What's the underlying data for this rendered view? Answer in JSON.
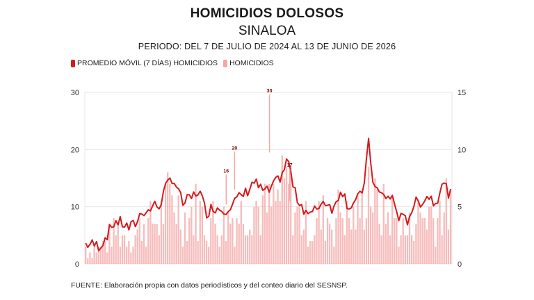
{
  "header": {
    "title": "HOMICIDIOS DOLOSOS",
    "subtitle": "SINALOA",
    "period": "PERIODO: DEL 7 DE JULIO DE 2024 AL 13 DE JUNIO DE 2026"
  },
  "legend": {
    "moving_average": "PROMEDIO MÓVIL (7 DÍAS) HOMICIDIOS",
    "daily": "HOMICIDIOS"
  },
  "source": "FUENTE: Elaboración propia con datos periodísticos y del conteo diario del SESNSP.",
  "colors": {
    "moving_average": "#d7191c",
    "daily": "#f4a6a6",
    "grid": "#e6e6e6"
  },
  "chart_data": {
    "type": "bar",
    "title": "HOMICIDIOS DOLOSOS",
    "subtitle": "SINALOA",
    "x_start": "2024-07-07",
    "x_end": "2026-06-13",
    "grid": true,
    "legend_position": "top-left",
    "y_left": {
      "ticks": [
        0,
        10,
        20,
        30
      ],
      "range": [
        0,
        30
      ]
    },
    "y_right": {
      "ticks": [
        0,
        5,
        10,
        15
      ],
      "range": [
        0,
        15
      ]
    },
    "annotated_peaks": [
      {
        "label": "30",
        "value": 30
      },
      {
        "label": "20",
        "value": 20
      },
      {
        "label": "17",
        "value": 17
      },
      {
        "label": "16",
        "value": 16
      }
    ],
    "moving_average_knots": [
      [
        0,
        3.5
      ],
      [
        0.04,
        3.2
      ],
      [
        0.06,
        5.3
      ],
      [
        0.08,
        7.5
      ],
      [
        0.1,
        7.1
      ],
      [
        0.12,
        6.2
      ],
      [
        0.14,
        7.3
      ],
      [
        0.155,
        9.5
      ],
      [
        0.17,
        9.0
      ],
      [
        0.185,
        10.3
      ],
      [
        0.2,
        10.0
      ],
      [
        0.215,
        12.5
      ],
      [
        0.235,
        15.3
      ],
      [
        0.25,
        13.5
      ],
      [
        0.265,
        10.5
      ],
      [
        0.29,
        11.5
      ],
      [
        0.31,
        13.0
      ],
      [
        0.33,
        9.0
      ],
      [
        0.35,
        10.0
      ],
      [
        0.38,
        9.5
      ],
      [
        0.41,
        11.0
      ],
      [
        0.44,
        12.5
      ],
      [
        0.46,
        14.5
      ],
      [
        0.48,
        13.0
      ],
      [
        0.5,
        12.5
      ],
      [
        0.52,
        14.0
      ],
      [
        0.54,
        16.0
      ],
      [
        0.555,
        18.5
      ],
      [
        0.565,
        14.5
      ],
      [
        0.575,
        12.0
      ],
      [
        0.6,
        9.5
      ],
      [
        0.62,
        8.5
      ],
      [
        0.64,
        10.5
      ],
      [
        0.66,
        11.0
      ],
      [
        0.68,
        9.5
      ],
      [
        0.7,
        13.5
      ],
      [
        0.72,
        10.0
      ],
      [
        0.75,
        11.5
      ],
      [
        0.76,
        13.0
      ],
      [
        0.775,
        21.0
      ],
      [
        0.79,
        13.5
      ],
      [
        0.81,
        12.0
      ],
      [
        0.84,
        11.5
      ],
      [
        0.86,
        8.0
      ],
      [
        0.88,
        7.5
      ],
      [
        0.9,
        10.5
      ],
      [
        0.92,
        11.0
      ],
      [
        0.94,
        12.0
      ],
      [
        0.96,
        10.5
      ],
      [
        0.975,
        14.5
      ],
      [
        1.0,
        12.0
      ]
    ]
  }
}
